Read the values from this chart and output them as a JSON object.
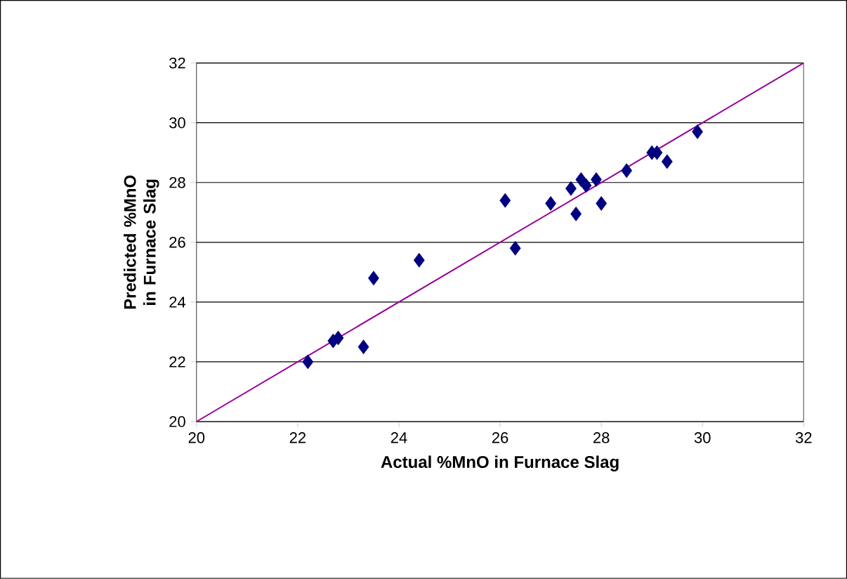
{
  "chart_data": {
    "type": "scatter",
    "xlabel": "Actual %MnO in Furnace Slag",
    "ylabel": "Predicted %MnO in Furnace Slag",
    "xlim": [
      20,
      32
    ],
    "ylim": [
      20,
      32
    ],
    "xticks": [
      20,
      22,
      24,
      26,
      28,
      30,
      32
    ],
    "yticks": [
      20,
      22,
      24,
      26,
      28,
      30,
      32
    ],
    "grid": "y",
    "series": [
      {
        "color": "#000080",
        "marker": "diamond",
        "x": [
          22.2,
          22.7,
          22.8,
          23.3,
          23.5,
          24.4,
          26.1,
          26.3,
          27.0,
          27.4,
          27.5,
          27.6,
          27.7,
          27.9,
          28.0,
          28.5,
          29.0,
          29.1,
          29.3,
          29.9
        ],
        "values": [
          22.0,
          22.7,
          22.8,
          22.5,
          24.8,
          25.4,
          27.4,
          25.8,
          27.3,
          27.8,
          26.95,
          28.1,
          27.9,
          28.1,
          27.3,
          28.4,
          29.0,
          29.0,
          28.7,
          29.7
        ]
      },
      {
        "type": "line",
        "color": "#990099",
        "marker": "none",
        "line_style": "solid",
        "x": [
          20,
          32
        ],
        "values": [
          20,
          32
        ]
      }
    ]
  }
}
